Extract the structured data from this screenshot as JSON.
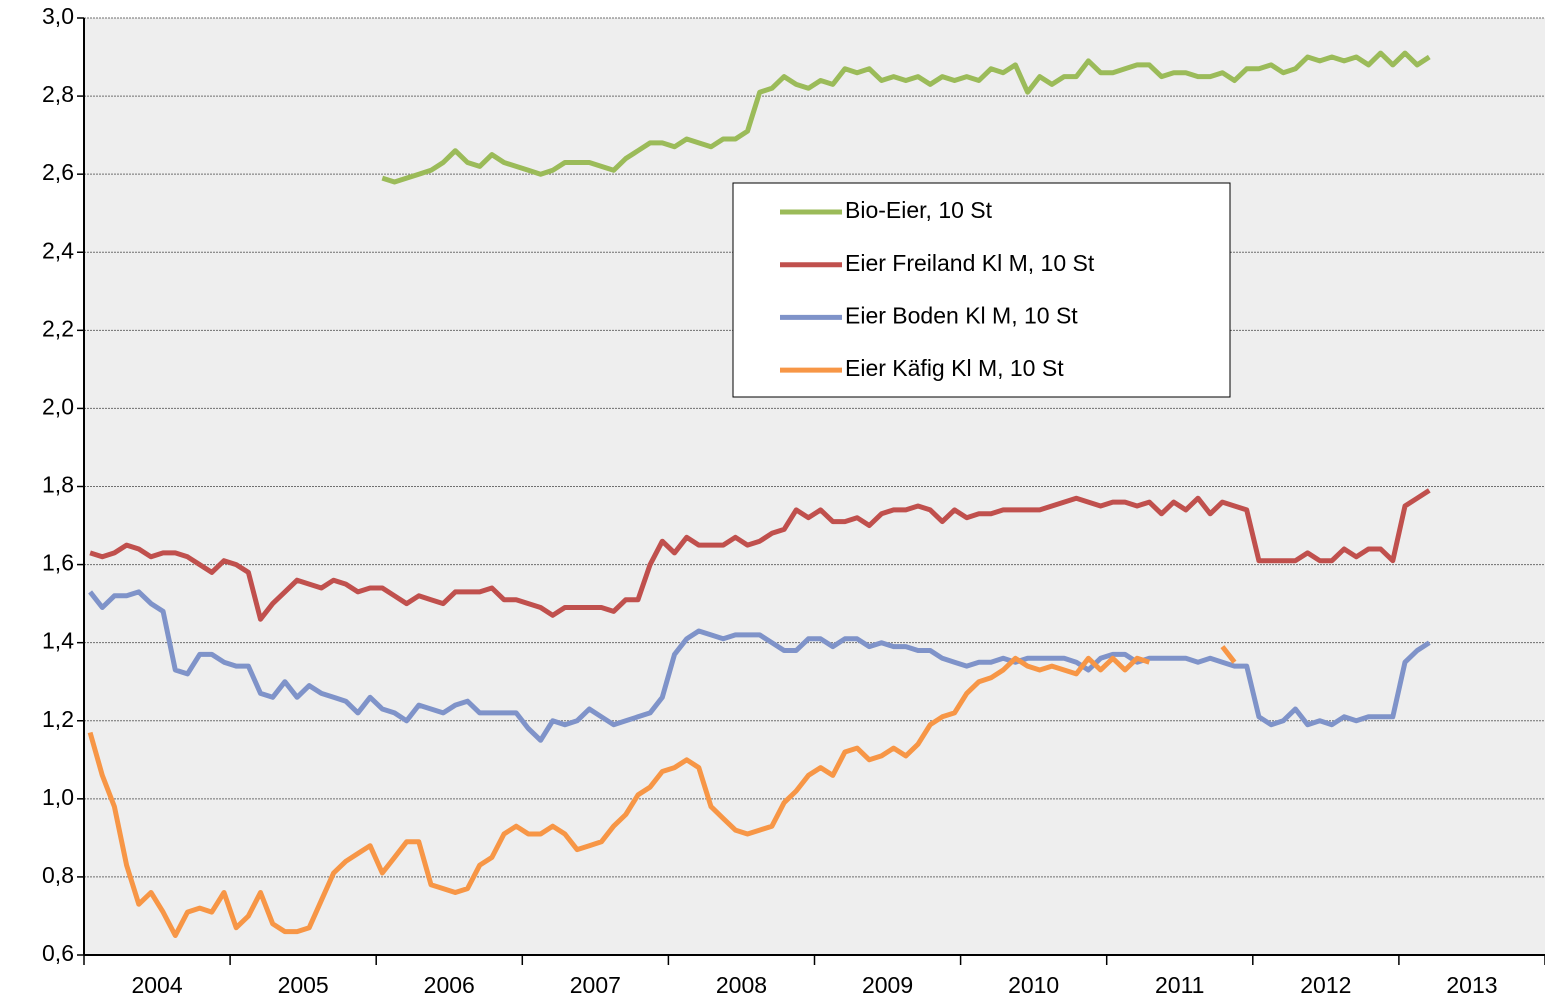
{
  "chart_data": {
    "type": "line",
    "categories": [
      null,
      null,
      null,
      null,
      null,
      null,
      "2004",
      null,
      null,
      null,
      null,
      null,
      null,
      null,
      null,
      null,
      null,
      null,
      "2005",
      null,
      null,
      null,
      null,
      null,
      null,
      null,
      null,
      null,
      null,
      null,
      "2006",
      null,
      null,
      null,
      null,
      null,
      null,
      null,
      null,
      null,
      null,
      null,
      "2007",
      null,
      null,
      null,
      null,
      null,
      null,
      null,
      null,
      null,
      null,
      null,
      "2008",
      null,
      null,
      null,
      null,
      null,
      null,
      null,
      null,
      null,
      null,
      null,
      "2009",
      null,
      null,
      null,
      null,
      null,
      null,
      null,
      null,
      null,
      null,
      null,
      "2010",
      null,
      null,
      null,
      null,
      null,
      null,
      null,
      null,
      null,
      null,
      null,
      "2011",
      null,
      null,
      null,
      null,
      null,
      null,
      null,
      null,
      null,
      null,
      null,
      "2012",
      null,
      null,
      null,
      null,
      null,
      null,
      null,
      null,
      null,
      null,
      null,
      "2013",
      null,
      null,
      null,
      null,
      null
    ],
    "series": [
      {
        "name": "Bio-Eier, 10 St",
        "color": "#9bbb59",
        "values": [
          null,
          null,
          null,
          null,
          null,
          null,
          null,
          null,
          null,
          null,
          null,
          null,
          null,
          null,
          null,
          null,
          null,
          null,
          null,
          null,
          null,
          null,
          null,
          null,
          2.59,
          2.58,
          2.59,
          2.6,
          2.61,
          2.63,
          2.66,
          2.63,
          2.62,
          2.65,
          2.63,
          2.62,
          2.61,
          2.6,
          2.61,
          2.63,
          2.63,
          2.63,
          2.62,
          2.61,
          2.64,
          2.66,
          2.68,
          2.68,
          2.67,
          2.69,
          2.68,
          2.67,
          2.69,
          2.69,
          2.71,
          2.81,
          2.82,
          2.85,
          2.83,
          2.82,
          2.84,
          2.83,
          2.87,
          2.86,
          2.87,
          2.84,
          2.85,
          2.84,
          2.85,
          2.83,
          2.85,
          2.84,
          2.85,
          2.84,
          2.87,
          2.86,
          2.88,
          2.81,
          2.85,
          2.83,
          2.85,
          2.85,
          2.89,
          2.86,
          2.86,
          2.87,
          2.88,
          2.88,
          2.85,
          2.86,
          2.86,
          2.85,
          2.85,
          2.86,
          2.84,
          2.87,
          2.87,
          2.88,
          2.86,
          2.87,
          2.9,
          2.89,
          2.9,
          2.89,
          2.9,
          2.88,
          2.91,
          2.88,
          2.91,
          2.88,
          2.9,
          null,
          null,
          null,
          null,
          null,
          null,
          null,
          null,
          null
        ]
      },
      {
        "name": "Eier Freiland Kl M, 10 St",
        "color": "#c0504d",
        "values": [
          1.63,
          1.62,
          1.63,
          1.65,
          1.64,
          1.62,
          1.63,
          1.63,
          1.62,
          1.6,
          1.58,
          1.61,
          1.6,
          1.58,
          1.46,
          1.5,
          1.53,
          1.56,
          1.55,
          1.54,
          1.56,
          1.55,
          1.53,
          1.54,
          1.54,
          1.52,
          1.5,
          1.52,
          1.51,
          1.5,
          1.53,
          1.53,
          1.53,
          1.54,
          1.51,
          1.51,
          1.5,
          1.49,
          1.47,
          1.49,
          1.49,
          1.49,
          1.49,
          1.48,
          1.51,
          1.51,
          1.6,
          1.66,
          1.63,
          1.67,
          1.65,
          1.65,
          1.65,
          1.67,
          1.65,
          1.66,
          1.68,
          1.69,
          1.74,
          1.72,
          1.74,
          1.71,
          1.71,
          1.72,
          1.7,
          1.73,
          1.74,
          1.74,
          1.75,
          1.74,
          1.71,
          1.74,
          1.72,
          1.73,
          1.73,
          1.74,
          1.74,
          1.74,
          1.74,
          1.75,
          1.76,
          1.77,
          1.76,
          1.75,
          1.76,
          1.76,
          1.75,
          1.76,
          1.73,
          1.76,
          1.74,
          1.77,
          1.73,
          1.76,
          1.75,
          1.74,
          1.61,
          1.61,
          1.61,
          1.61,
          1.63,
          1.61,
          1.61,
          1.64,
          1.62,
          1.64,
          1.64,
          1.61,
          1.75,
          1.77,
          1.79,
          null,
          null,
          null,
          null,
          null,
          null,
          null,
          null,
          null
        ]
      },
      {
        "name": "Eier Boden Kl M, 10 St",
        "color": "#7f93c9",
        "values": [
          1.53,
          1.49,
          1.52,
          1.52,
          1.53,
          1.5,
          1.48,
          1.33,
          1.32,
          1.37,
          1.37,
          1.35,
          1.34,
          1.34,
          1.27,
          1.26,
          1.3,
          1.26,
          1.29,
          1.27,
          1.26,
          1.25,
          1.22,
          1.26,
          1.23,
          1.22,
          1.2,
          1.24,
          1.23,
          1.22,
          1.24,
          1.25,
          1.22,
          1.22,
          1.22,
          1.22,
          1.18,
          1.15,
          1.2,
          1.19,
          1.2,
          1.23,
          1.21,
          1.19,
          1.2,
          1.21,
          1.22,
          1.26,
          1.37,
          1.41,
          1.43,
          1.42,
          1.41,
          1.42,
          1.42,
          1.42,
          1.4,
          1.38,
          1.38,
          1.41,
          1.41,
          1.39,
          1.41,
          1.41,
          1.39,
          1.4,
          1.39,
          1.39,
          1.38,
          1.38,
          1.36,
          1.35,
          1.34,
          1.35,
          1.35,
          1.36,
          1.35,
          1.36,
          1.36,
          1.36,
          1.36,
          1.35,
          1.33,
          1.36,
          1.37,
          1.37,
          1.35,
          1.36,
          1.36,
          1.36,
          1.36,
          1.35,
          1.36,
          1.35,
          1.34,
          1.34,
          1.21,
          1.19,
          1.2,
          1.23,
          1.19,
          1.2,
          1.19,
          1.21,
          1.2,
          1.21,
          1.21,
          1.21,
          1.35,
          1.38,
          1.4,
          null,
          null,
          null,
          null,
          null,
          null,
          null,
          null,
          null
        ]
      },
      {
        "name": "Eier Käfig Kl M, 10 St",
        "color": "#f79646",
        "values": [
          1.17,
          1.06,
          0.98,
          0.83,
          0.73,
          0.76,
          0.71,
          0.65,
          0.71,
          0.72,
          0.71,
          0.76,
          0.67,
          0.7,
          0.76,
          0.68,
          0.66,
          0.66,
          0.67,
          0.74,
          0.81,
          0.84,
          0.86,
          0.88,
          0.81,
          0.85,
          0.89,
          0.89,
          0.78,
          0.77,
          0.76,
          0.77,
          0.83,
          0.85,
          0.91,
          0.93,
          0.91,
          0.91,
          0.93,
          0.91,
          0.87,
          0.88,
          0.89,
          0.93,
          0.96,
          1.01,
          1.03,
          1.07,
          1.08,
          1.1,
          1.08,
          0.98,
          0.95,
          0.92,
          0.91,
          0.92,
          0.93,
          0.99,
          1.02,
          1.06,
          1.08,
          1.06,
          1.12,
          1.13,
          1.1,
          1.11,
          1.13,
          1.11,
          1.14,
          1.19,
          1.21,
          1.22,
          1.27,
          1.3,
          1.31,
          1.33,
          1.36,
          1.34,
          1.33,
          1.34,
          1.33,
          1.32,
          1.36,
          1.33,
          1.36,
          1.33,
          1.36,
          1.35,
          null,
          null,
          null,
          null,
          null,
          1.39,
          1.35,
          null,
          null,
          null,
          null,
          null,
          null,
          null,
          null,
          null,
          null,
          null,
          null,
          null,
          null,
          null,
          null,
          null,
          null,
          null,
          null,
          null,
          null,
          null,
          null,
          null
        ]
      }
    ],
    "ylim": [
      0.6,
      3.0
    ],
    "yticks": [
      {
        "value": 0.6,
        "label": "0,6"
      },
      {
        "value": 0.8,
        "label": "0,8"
      },
      {
        "value": 1.0,
        "label": "1,0"
      },
      {
        "value": 1.2,
        "label": "1,2"
      },
      {
        "value": 1.4,
        "label": "1,4"
      },
      {
        "value": 1.6,
        "label": "1,6"
      },
      {
        "value": 1.8,
        "label": "1,8"
      },
      {
        "value": 2.0,
        "label": "2,0"
      },
      {
        "value": 2.2,
        "label": "2,2"
      },
      {
        "value": 2.4,
        "label": "2,4"
      },
      {
        "value": 2.6,
        "label": "2,6"
      },
      {
        "value": 2.8,
        "label": "2,8"
      },
      {
        "value": 3.0,
        "label": "3,0"
      }
    ],
    "grid": true,
    "legend": "center"
  }
}
